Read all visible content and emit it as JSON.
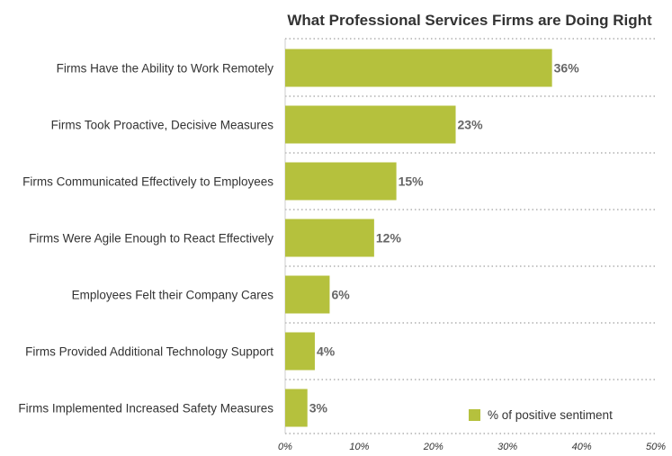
{
  "chart_data": {
    "type": "bar",
    "orientation": "horizontal",
    "title": "What Professional Services Firms are Doing Right",
    "categories": [
      "Firms Have the Ability to Work Remotely",
      "Firms Took Proactive, Decisive Measures",
      "Firms Communicated Effectively to Employees",
      "Firms Were Agile Enough to React Effectively",
      "Employees Felt their Company Cares",
      "Firms Provided Additional Technology Support",
      "Firms Implemented Increased Safety Measures"
    ],
    "series": [
      {
        "name": "% of positive sentiment",
        "values": [
          36,
          23,
          15,
          12,
          6,
          4,
          3
        ],
        "value_labels": [
          "36%",
          "23%",
          "15%",
          "12%",
          "6%",
          "4%",
          "3%"
        ],
        "color": "#b5c13d"
      }
    ],
    "xlim": [
      0,
      50
    ],
    "x_ticks": [
      0,
      10,
      20,
      30,
      40,
      50
    ],
    "x_tick_labels": [
      "0%",
      "10%",
      "20%",
      "30%",
      "40%",
      "50%"
    ],
    "xlabel": "",
    "ylabel": "",
    "grid": true,
    "legend_position": "bottom-right"
  }
}
